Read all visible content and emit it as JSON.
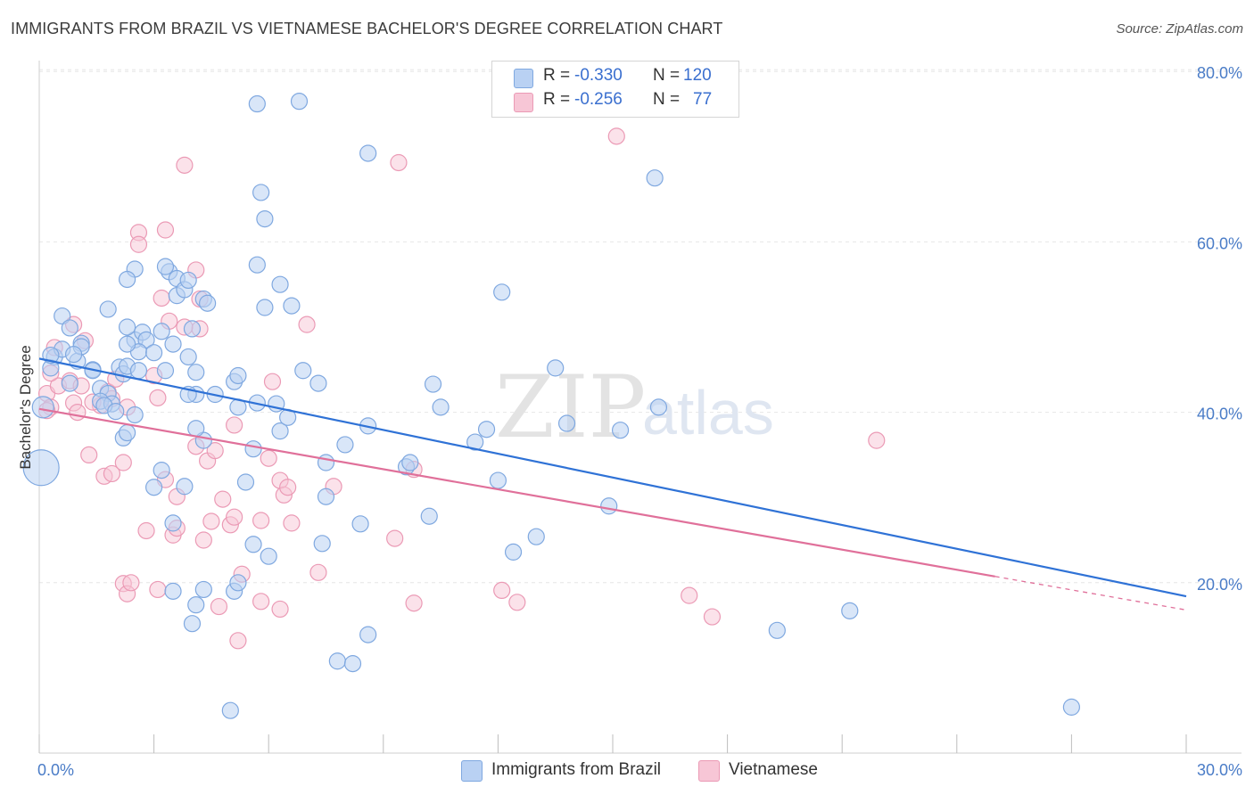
{
  "title": "IMMIGRANTS FROM BRAZIL VS VIETNAMESE BACHELOR'S DEGREE CORRELATION CHART",
  "source": "Source: ZipAtlas.com",
  "watermark": {
    "zip": "ZIP",
    "atlas": "atlas"
  },
  "stats": [
    {
      "r_label": "R =",
      "r_value": "-0.330",
      "n_label": "N =",
      "n_value": "120"
    },
    {
      "r_label": "R =",
      "r_value": "-0.256",
      "n_label": "N =",
      "n_value": "77"
    }
  ],
  "legend": [
    {
      "label": "Immigrants from Brazil"
    },
    {
      "label": "Vietnamese"
    }
  ],
  "colors": {
    "blue_fill": "#b9d1f3",
    "blue_stroke": "#7fa8e0",
    "blue_line": "#2f72d6",
    "pink_fill": "#f7c6d6",
    "pink_stroke": "#eb9ab5",
    "pink_line": "#e0709a",
    "grid": "#e6e6e6",
    "axis_text": "#4a7cc7"
  },
  "chart_data": {
    "type": "scatter",
    "title": "IMMIGRANTS FROM BRAZIL VS VIETNAMESE BACHELOR'S DEGREE CORRELATION CHART",
    "xlabel": "",
    "ylabel": "Bachelor's Degree",
    "xlim": [
      0,
      30
    ],
    "ylim": [
      0,
      82
    ],
    "x_ticks": [
      {
        "value": 0,
        "label": "0.0%"
      },
      {
        "value": 30,
        "label": "30.0%"
      }
    ],
    "y_ticks": [
      {
        "value": 20,
        "label": "20.0%"
      },
      {
        "value": 40,
        "label": "40.0%"
      },
      {
        "value": 60,
        "label": "60.0%"
      },
      {
        "value": 80,
        "label": "80.0%"
      }
    ],
    "series": [
      {
        "name": "Immigrants from Brazil",
        "color": "blue",
        "r": -0.33,
        "n": 120,
        "trend": {
          "x0": 0,
          "y0": 46.3,
          "x1": 30,
          "y1": 18.4,
          "solid_to": 30
        },
        "points": [
          [
            0.05,
            33.5
          ],
          [
            0.1,
            40.6
          ],
          [
            0.4,
            46.5
          ],
          [
            0.6,
            51.3
          ],
          [
            0.6,
            47.4
          ],
          [
            0.3,
            45.2
          ],
          [
            0.3,
            46.7
          ],
          [
            0.8,
            49.9
          ],
          [
            0.8,
            43.4
          ],
          [
            1.0,
            46.0
          ],
          [
            1.1,
            48.1
          ],
          [
            1.1,
            47.7
          ],
          [
            0.9,
            46.8
          ],
          [
            1.4,
            45.0
          ],
          [
            1.4,
            44.9
          ],
          [
            1.6,
            42.8
          ],
          [
            1.8,
            42.2
          ],
          [
            1.6,
            41.3
          ],
          [
            1.9,
            41.0
          ],
          [
            1.7,
            40.8
          ],
          [
            2.0,
            40.1
          ],
          [
            1.8,
            52.1
          ],
          [
            2.1,
            45.3
          ],
          [
            2.2,
            44.5
          ],
          [
            2.5,
            48.5
          ],
          [
            2.3,
            50.0
          ],
          [
            2.7,
            49.4
          ],
          [
            2.8,
            48.5
          ],
          [
            2.6,
            47.1
          ],
          [
            2.3,
            48.0
          ],
          [
            2.2,
            37.0
          ],
          [
            2.3,
            37.6
          ],
          [
            2.3,
            45.4
          ],
          [
            2.5,
            56.8
          ],
          [
            2.3,
            55.6
          ],
          [
            2.6,
            44.9
          ],
          [
            3.2,
            49.5
          ],
          [
            3.4,
            56.5
          ],
          [
            3.3,
            57.1
          ],
          [
            3.6,
            55.7
          ],
          [
            3.6,
            53.7
          ],
          [
            3.8,
            54.4
          ],
          [
            3.9,
            55.5
          ],
          [
            4.0,
            49.8
          ],
          [
            3.9,
            46.5
          ],
          [
            4.3,
            53.3
          ],
          [
            4.4,
            52.8
          ],
          [
            4.1,
            44.7
          ],
          [
            4.1,
            42.1
          ],
          [
            4.3,
            36.7
          ],
          [
            3.9,
            42.1
          ],
          [
            3.5,
            48.0
          ],
          [
            3.3,
            44.9
          ],
          [
            3.2,
            33.2
          ],
          [
            3.0,
            31.2
          ],
          [
            3.8,
            31.3
          ],
          [
            3.5,
            27.0
          ],
          [
            3.5,
            19.0
          ],
          [
            4.1,
            38.1
          ],
          [
            4.6,
            42.1
          ],
          [
            5.1,
            43.6
          ],
          [
            5.2,
            40.6
          ],
          [
            5.2,
            44.3
          ],
          [
            5.7,
            41.1
          ],
          [
            5.7,
            57.3
          ],
          [
            5.9,
            52.3
          ],
          [
            6.3,
            55.0
          ],
          [
            6.6,
            52.5
          ],
          [
            5.4,
            31.8
          ],
          [
            5.6,
            35.7
          ],
          [
            5.6,
            24.5
          ],
          [
            6.0,
            23.1
          ],
          [
            5.1,
            19.0
          ],
          [
            5.2,
            20.0
          ],
          [
            4.3,
            19.2
          ],
          [
            4.1,
            17.4
          ],
          [
            4.0,
            15.2
          ],
          [
            5.8,
            65.8
          ],
          [
            5.9,
            62.7
          ],
          [
            6.3,
            37.8
          ],
          [
            6.5,
            39.4
          ],
          [
            6.9,
            44.9
          ],
          [
            7.3,
            43.4
          ],
          [
            7.5,
            34.1
          ],
          [
            7.5,
            30.1
          ],
          [
            7.4,
            24.6
          ],
          [
            8.0,
            36.2
          ],
          [
            8.4,
            26.9
          ],
          [
            8.6,
            38.4
          ],
          [
            8.6,
            13.9
          ],
          [
            7.8,
            10.8
          ],
          [
            8.2,
            10.5
          ],
          [
            9.6,
            33.6
          ],
          [
            9.7,
            34.1
          ],
          [
            10.2,
            27.8
          ],
          [
            10.3,
            43.3
          ],
          [
            10.5,
            40.6
          ],
          [
            11.4,
            36.5
          ],
          [
            12.0,
            32.0
          ],
          [
            12.1,
            54.1
          ],
          [
            11.7,
            38.0
          ],
          [
            12.4,
            23.6
          ],
          [
            13.0,
            25.4
          ],
          [
            13.5,
            45.2
          ],
          [
            13.8,
            38.7
          ],
          [
            14.9,
            29.0
          ],
          [
            15.2,
            37.9
          ],
          [
            16.2,
            40.6
          ],
          [
            16.1,
            67.5
          ],
          [
            19.3,
            14.4
          ],
          [
            21.2,
            16.7
          ],
          [
            27.0,
            5.4
          ],
          [
            6.8,
            76.5
          ],
          [
            5.7,
            76.2
          ],
          [
            8.6,
            70.4
          ],
          [
            5.0,
            5.0
          ],
          [
            3.0,
            47.0
          ],
          [
            6.2,
            41.0
          ],
          [
            2.5,
            39.7
          ]
        ]
      },
      {
        "name": "Vietnamese",
        "color": "pink",
        "r": -0.256,
        "n": 77,
        "trend": {
          "x0": 0,
          "y0": 40.4,
          "x1": 30,
          "y1": 16.8,
          "solid_to": 25
        }
      }
    ]
  }
}
